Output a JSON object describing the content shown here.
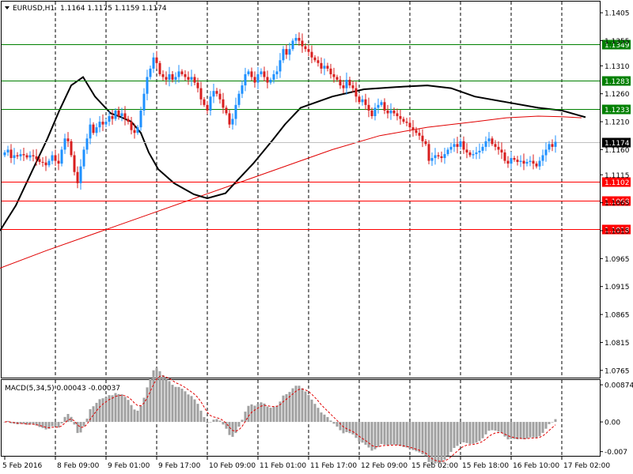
{
  "chart_data": {
    "type": "candlestick",
    "symbol_label": "EURUSD,H1",
    "ohlc_label": "1.1164 1.1175 1.1159 1.1174",
    "price_ticks": [
      1.1405,
      1.1355,
      1.131,
      1.126,
      1.121,
      1.116,
      1.1115,
      1.1065,
      1.1015,
      1.0965,
      1.0915,
      1.0865,
      1.0815,
      1.0765
    ],
    "price_tick_labels": [
      "1.1405",
      "1.1355",
      "1.1310",
      "1.1260",
      "1.1210",
      "1.1160",
      "1.1115",
      "1.1065",
      "1.1015",
      "1.0965",
      "1.0915",
      "1.0865",
      "1.0815",
      "1.0765"
    ],
    "price_range": [
      1.0752,
      1.1425
    ],
    "levels": [
      {
        "value": 1.1349,
        "label": "1.1349",
        "color": "#008000"
      },
      {
        "value": 1.1283,
        "label": "1.1283",
        "color": "#008000"
      },
      {
        "value": 1.1233,
        "label": "1.1233",
        "color": "#008000"
      },
      {
        "value": 1.1102,
        "label": "1.1102",
        "color": "#ff0000"
      },
      {
        "value": 1.1068,
        "label": "1.1068",
        "color": "#ff0000"
      },
      {
        "value": 1.1018,
        "label": "1.1018",
        "color": "#ff0000"
      }
    ],
    "current_price": {
      "value": 1.1174,
      "label": "1.1174"
    },
    "time_labels": [
      "5 Feb 2016",
      "8 Feb 09:00",
      "9 Feb 01:00",
      "9 Feb 17:00",
      "10 Feb 09:00",
      "11 Feb 01:00",
      "11 Feb 17:00",
      "12 Feb 09:00",
      "15 Feb 02:00",
      "15 Feb 18:00",
      "16 Feb 10:00",
      "17 Feb 02:00"
    ],
    "time_label_bars": [
      0,
      16,
      32,
      48,
      64,
      80,
      96,
      112,
      128,
      144,
      160,
      176
    ],
    "closes": [
      1.1155,
      1.116,
      1.1145,
      1.115,
      1.1148,
      1.1152,
      1.115,
      1.1146,
      1.115,
      1.1148,
      1.1143,
      1.1138,
      1.1137,
      1.1132,
      1.114,
      1.115,
      1.114,
      1.1135,
      1.116,
      1.118,
      1.1175,
      1.115,
      1.112,
      1.11,
      1.113,
      1.116,
      1.118,
      1.1205,
      1.119,
      1.12,
      1.121,
      1.1205,
      1.121,
      1.122,
      1.1215,
      1.123,
      1.122,
      1.1225,
      1.1215,
      1.121,
      1.1195,
      1.119,
      1.12,
      1.123,
      1.126,
      1.129,
      1.1305,
      1.1325,
      1.1315,
      1.1295,
      1.129,
      1.1285,
      1.1295,
      1.1285,
      1.129,
      1.13,
      1.1295,
      1.129,
      1.1285,
      1.129,
      1.128,
      1.127,
      1.125,
      1.124,
      1.123,
      1.1255,
      1.1265,
      1.126,
      1.125,
      1.1235,
      1.1225,
      1.1205,
      1.1215,
      1.124,
      1.126,
      1.1275,
      1.1295,
      1.13,
      1.129,
      1.128,
      1.1295,
      1.13,
      1.129,
      1.128,
      1.1285,
      1.1295,
      1.13,
      1.132,
      1.134,
      1.133,
      1.134,
      1.1355,
      1.136,
      1.1355,
      1.1345,
      1.134,
      1.1335,
      1.1325,
      1.132,
      1.1315,
      1.1305,
      1.131,
      1.1305,
      1.1295,
      1.129,
      1.1285,
      1.1275,
      1.127,
      1.1285,
      1.1275,
      1.127,
      1.1255,
      1.1245,
      1.125,
      1.124,
      1.123,
      1.122,
      1.1235,
      1.124,
      1.1245,
      1.123,
      1.1225,
      1.123,
      1.1225,
      1.122,
      1.1215,
      1.121,
      1.1208,
      1.12,
      1.1195,
      1.119,
      1.1185,
      1.1175,
      1.117,
      1.114,
      1.1145,
      1.115,
      1.1148,
      1.1145,
      1.1152,
      1.116,
      1.1165,
      1.117,
      1.1165,
      1.1175,
      1.116,
      1.1155,
      1.115,
      1.1152,
      1.1155,
      1.1158,
      1.1165,
      1.1175,
      1.118,
      1.117,
      1.1165,
      1.116,
      1.1155,
      1.114,
      1.1135,
      1.1145,
      1.1142,
      1.1138,
      1.114,
      1.1135,
      1.1138,
      1.114,
      1.1135,
      1.113,
      1.114,
      1.115,
      1.116,
      1.117,
      1.1165,
      1.1174
    ],
    "ma_black": [
      [
        0,
        1.1015
      ],
      [
        20,
        1.106
      ],
      [
        40,
        1.112
      ],
      [
        60,
        1.118
      ],
      [
        75,
        1.123
      ],
      [
        90,
        1.1275
      ],
      [
        105,
        1.129
      ],
      [
        120,
        1.1255
      ],
      [
        140,
        1.1225
      ],
      [
        150,
        1.122
      ],
      [
        166,
        1.121
      ],
      [
        178,
        1.119
      ],
      [
        188,
        1.1155
      ],
      [
        200,
        1.1125
      ],
      [
        220,
        1.11
      ],
      [
        245,
        1.108
      ],
      [
        262,
        1.1073
      ],
      [
        285,
        1.1082
      ],
      [
        300,
        1.1105
      ],
      [
        320,
        1.1135
      ],
      [
        345,
        1.1178
      ],
      [
        360,
        1.1205
      ],
      [
        380,
        1.1235
      ],
      [
        420,
        1.1255
      ],
      [
        460,
        1.1268
      ],
      [
        500,
        1.1272
      ],
      [
        540,
        1.1275
      ],
      [
        570,
        1.127
      ],
      [
        600,
        1.1255
      ],
      [
        640,
        1.1245
      ],
      [
        680,
        1.1235
      ],
      [
        710,
        1.123
      ],
      [
        730,
        1.1222
      ],
      [
        740,
        1.1218
      ]
    ],
    "ma_red": [
      [
        0,
        1.0948
      ],
      [
        60,
        1.098
      ],
      [
        120,
        1.101
      ],
      [
        180,
        1.104
      ],
      [
        240,
        1.107
      ],
      [
        300,
        1.11
      ],
      [
        360,
        1.113
      ],
      [
        420,
        1.116
      ],
      [
        480,
        1.1185
      ],
      [
        540,
        1.12
      ],
      [
        600,
        1.121
      ],
      [
        640,
        1.1217
      ],
      [
        680,
        1.122
      ],
      [
        710,
        1.1219
      ],
      [
        735,
        1.1217
      ]
    ],
    "macd": {
      "label": "MACD(5,34,5) 0.00043 -0.00037",
      "ticks": [
        0.00874,
        0.0,
        -0.007
      ],
      "tick_labels": [
        "0.00874",
        "0.00",
        "-0.007"
      ],
      "range": [
        -0.0078,
        0.0095
      ]
    }
  }
}
